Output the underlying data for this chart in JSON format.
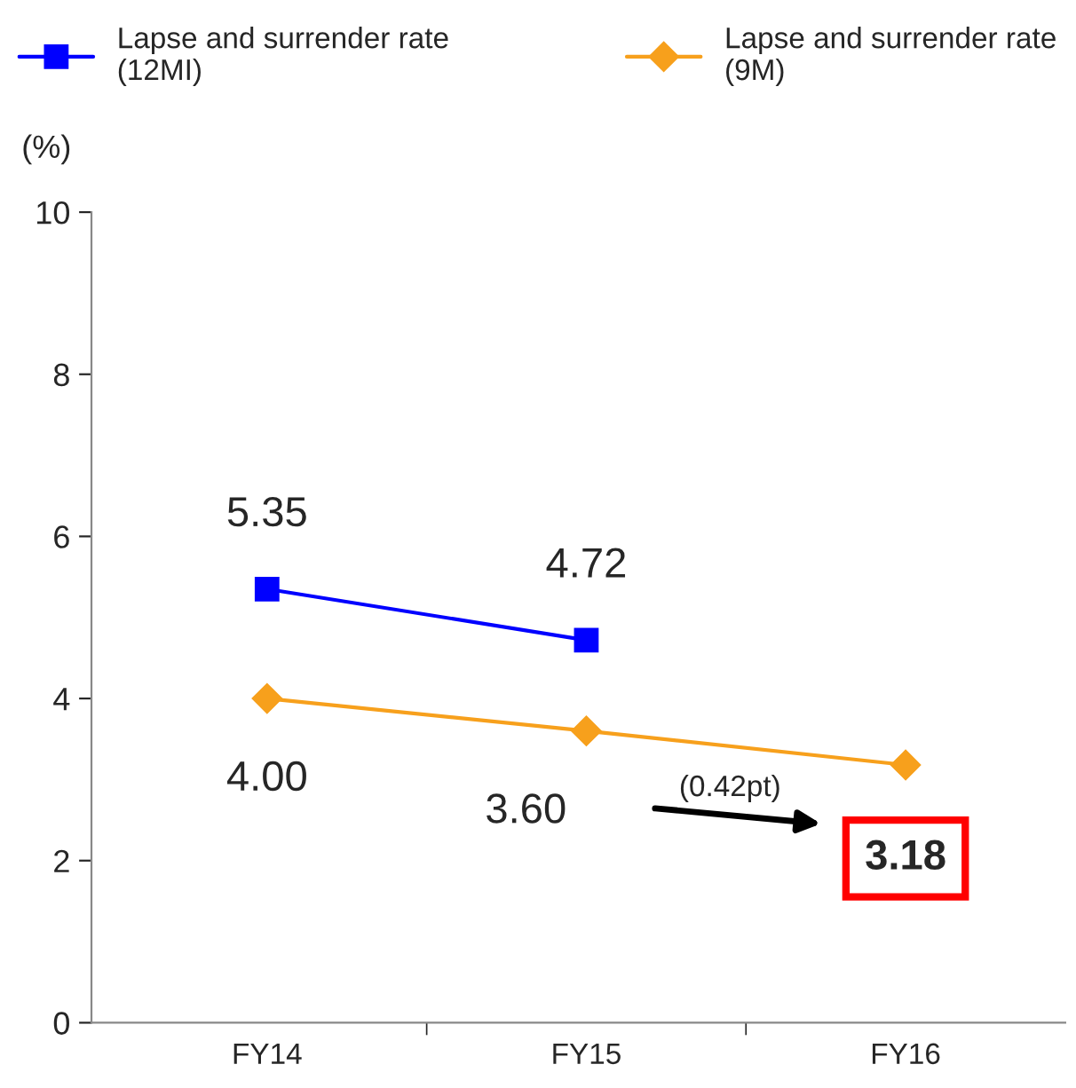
{
  "chart_data": {
    "type": "line",
    "ylabel": "(%)",
    "categories": [
      "FY14",
      "FY15",
      "FY16"
    ],
    "series": [
      {
        "name": "Lapse and surrender rate\n(12MI)",
        "color": "#0000ff",
        "marker": "square",
        "values": [
          5.35,
          4.72,
          null
        ],
        "value_labels": [
          "5.35",
          "4.72",
          null
        ]
      },
      {
        "name": "Lapse and surrender rate\n(9M)",
        "color": "#f7a01c",
        "marker": "diamond",
        "values": [
          4.0,
          3.6,
          3.18
        ],
        "value_labels": [
          "4.00",
          "3.60",
          "3.18"
        ]
      }
    ],
    "ylim": [
      0,
      10
    ],
    "yticks": [
      0,
      2,
      4,
      6,
      8,
      10
    ],
    "grid": false,
    "legend": "top",
    "annotations": [
      "(0.42pt)"
    ]
  }
}
